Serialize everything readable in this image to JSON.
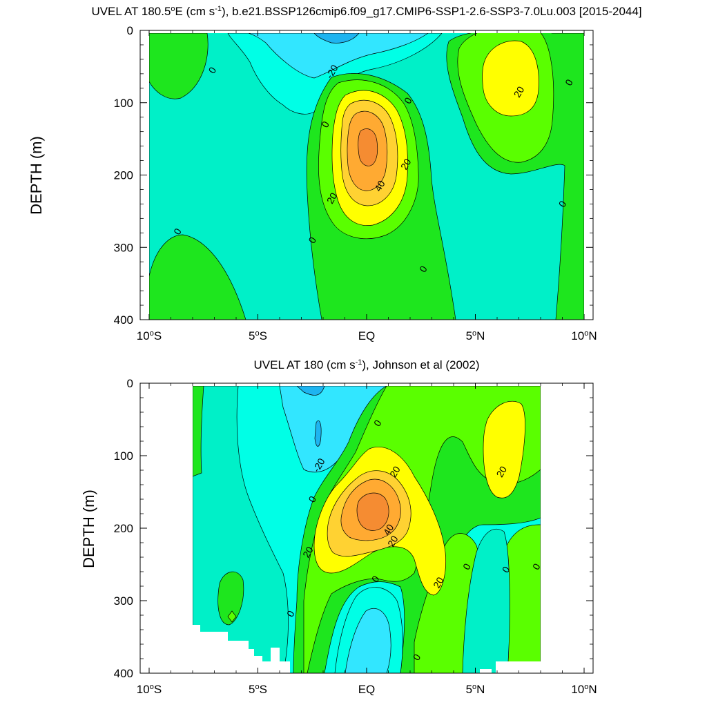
{
  "palette": {
    "neg30": "#1eb4f0",
    "neg20": "#32e6ff",
    "neg10": "#00ffe6",
    "zero": "#00f0c8",
    "pos0": "#1ee61e",
    "pos10": "#5aff00",
    "pos20": "#ffff00",
    "pos30": "#ffd232",
    "pos40": "#ffaa32",
    "pos50": "#f58c32"
  },
  "chart_data": [
    {
      "type": "heatmap",
      "subtype": "filled-contour",
      "title_main": "UVEL AT 180.5",
      "title_deg": "o",
      "title_mid": "E (cm s",
      "title_sup": "-1",
      "title_end": "), b.e21.BSSP126cmip6.f09_g17.CMIP6-SSP1-2.6-SSP3-7.0Lu.003 [2015-2044]",
      "ylabel": "DEPTH (m)",
      "xlabel": "",
      "xlim": [
        -10,
        10
      ],
      "ylim": [
        400,
        0
      ],
      "y_inverted": true,
      "x_ticks": [
        {
          "value": -10,
          "num": "10",
          "deg": "o",
          "hem": "S"
        },
        {
          "value": -5,
          "num": "5",
          "deg": "o",
          "hem": "S"
        },
        {
          "value": 0,
          "num": "EQ",
          "deg": "",
          "hem": ""
        },
        {
          "value": 5,
          "num": "5",
          "deg": "o",
          "hem": "N"
        },
        {
          "value": 10,
          "num": "10",
          "deg": "o",
          "hem": "N"
        }
      ],
      "y_ticks": [
        "0",
        "100",
        "200",
        "300",
        "400"
      ],
      "contour_interval": 10,
      "contour_labels": [
        {
          "text": "0",
          "x": -7.1,
          "y": 55
        },
        {
          "text": "-20",
          "x": -1.6,
          "y": 57
        },
        {
          "text": "0",
          "x": -1.9,
          "y": 130
        },
        {
          "text": "0",
          "x": 1.9,
          "y": 97
        },
        {
          "text": "20",
          "x": 1.8,
          "y": 185
        },
        {
          "text": "40",
          "x": 0.6,
          "y": 215
        },
        {
          "text": "20",
          "x": -1.6,
          "y": 232
        },
        {
          "text": "20",
          "x": 7.0,
          "y": 85
        },
        {
          "text": "0",
          "x": 9.3,
          "y": 72
        },
        {
          "text": "0",
          "x": 9.0,
          "y": 240
        },
        {
          "text": "0",
          "x": -8.7,
          "y": 278
        },
        {
          "text": "0",
          "x": -2.5,
          "y": 290
        },
        {
          "text": "0",
          "x": 2.6,
          "y": 330
        }
      ]
    },
    {
      "type": "heatmap",
      "subtype": "filled-contour",
      "title_main": "UVEL AT 180 (cm s",
      "title_deg": "",
      "title_mid": "",
      "title_sup": "-1",
      "title_end": "), Johnson et al (2002)",
      "ylabel": "DEPTH (m)",
      "xlabel": "",
      "xlim": [
        -10,
        10
      ],
      "ylim": [
        400,
        0
      ],
      "y_inverted": true,
      "x_ticks": [
        {
          "value": -10,
          "num": "10",
          "deg": "o",
          "hem": "S"
        },
        {
          "value": -5,
          "num": "5",
          "deg": "o",
          "hem": "S"
        },
        {
          "value": 0,
          "num": "EQ",
          "deg": "",
          "hem": ""
        },
        {
          "value": 5,
          "num": "5",
          "deg": "o",
          "hem": "N"
        },
        {
          "value": 10,
          "num": "10",
          "deg": "o",
          "hem": "N"
        }
      ],
      "y_ticks": [
        "0",
        "100",
        "200",
        "300",
        "400"
      ],
      "contour_interval": 10,
      "data_xrange": [
        -8,
        8
      ],
      "contour_labels": [
        {
          "text": "-20",
          "x": -2.2,
          "y": 113
        },
        {
          "text": "0",
          "x": -2.5,
          "y": 160
        },
        {
          "text": "0",
          "x": 0.5,
          "y": 55
        },
        {
          "text": "20",
          "x": 1.3,
          "y": 122
        },
        {
          "text": "40",
          "x": 1.0,
          "y": 202
        },
        {
          "text": "20",
          "x": 1.2,
          "y": 218
        },
        {
          "text": "20",
          "x": -2.7,
          "y": 233
        },
        {
          "text": "0",
          "x": 0.4,
          "y": 270
        },
        {
          "text": "20",
          "x": 3.3,
          "y": 275
        },
        {
          "text": "20",
          "x": 6.2,
          "y": 122
        },
        {
          "text": "0",
          "x": 4.6,
          "y": 253
        },
        {
          "text": "0",
          "x": 6.4,
          "y": 257
        },
        {
          "text": "0",
          "x": 7.8,
          "y": 253
        },
        {
          "text": "0",
          "x": -3.5,
          "y": 318
        },
        {
          "text": "0",
          "x": 2.3,
          "y": 378
        }
      ]
    }
  ]
}
